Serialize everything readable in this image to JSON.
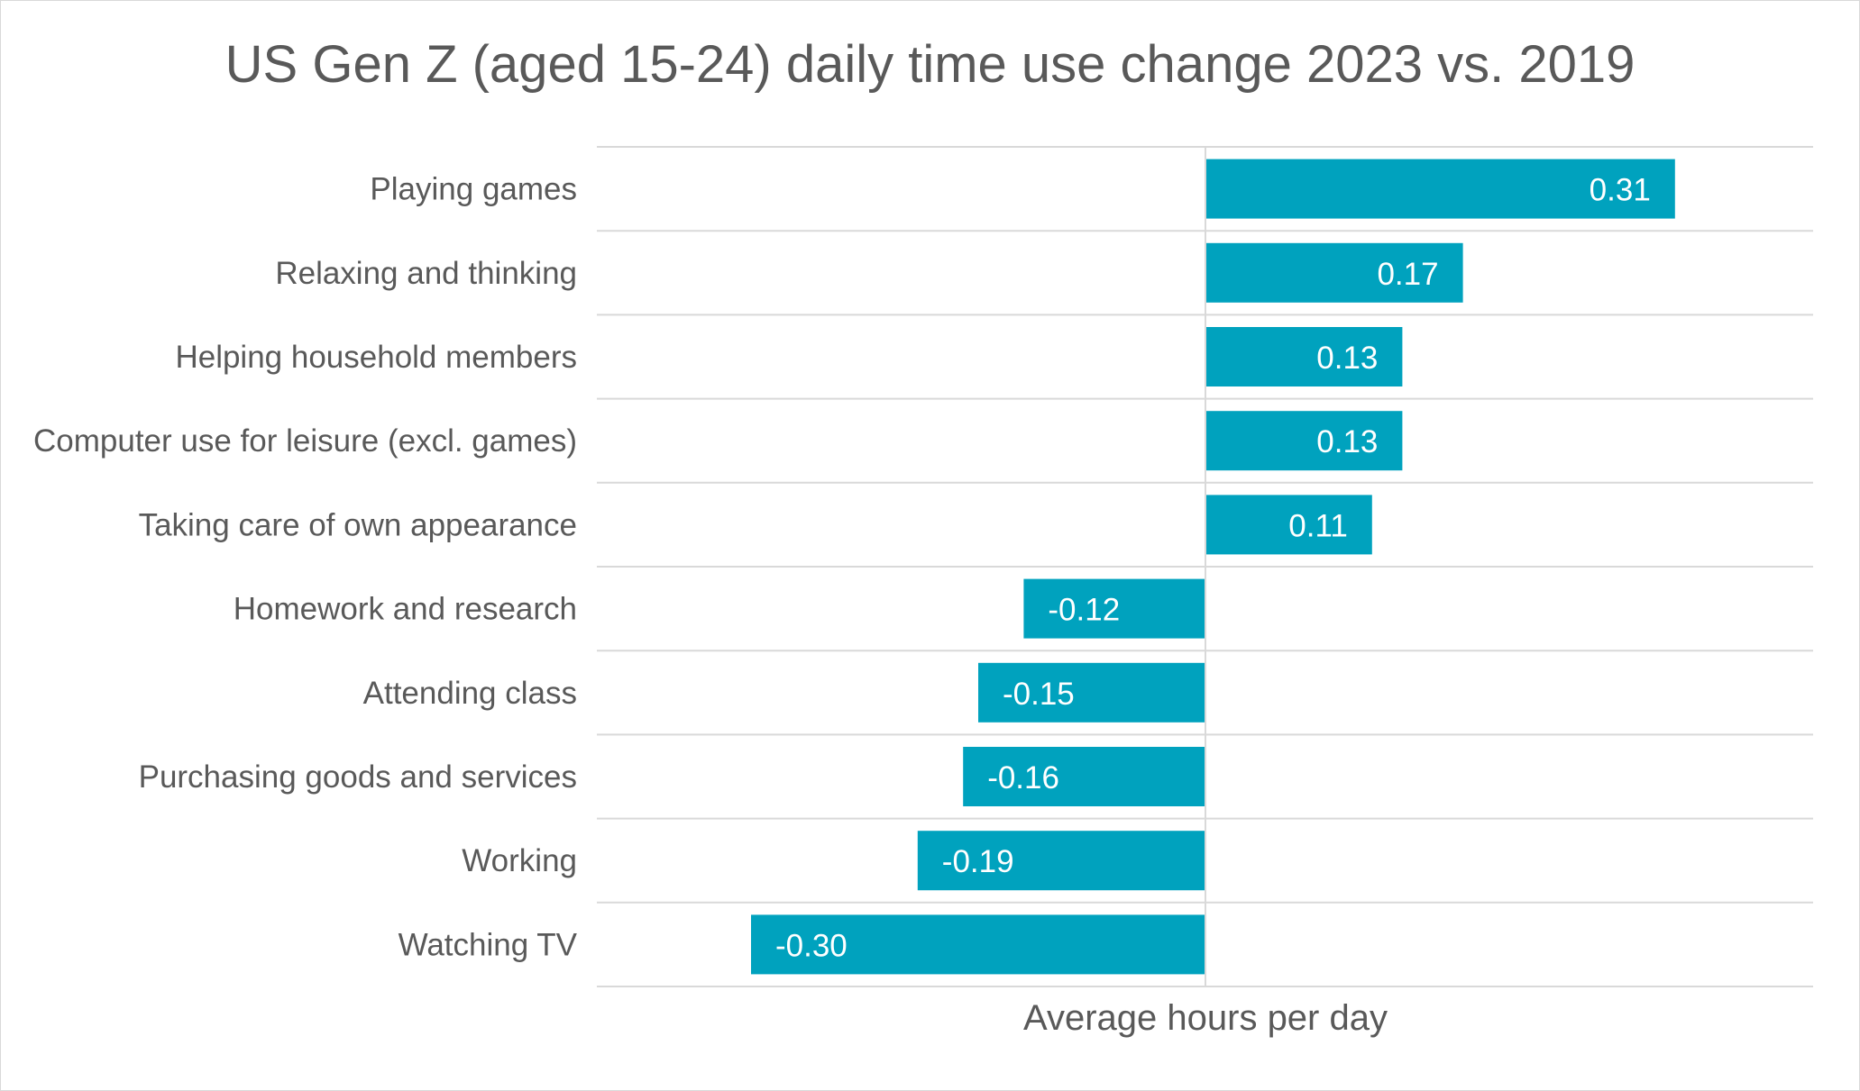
{
  "chart_data": {
    "type": "bar",
    "orientation": "horizontal",
    "title": "US Gen Z (aged 15-24) daily time use change 2023 vs. 2019",
    "xlabel": "Average hours per day",
    "ylabel": "",
    "categories": [
      "Playing games",
      "Relaxing and thinking",
      "Helping household members",
      "Computer use for leisure (excl. games)",
      "Taking care of own appearance",
      "Homework and research",
      "Attending class",
      "Purchasing goods and services",
      "Working",
      "Watching TV"
    ],
    "values": [
      0.31,
      0.17,
      0.13,
      0.13,
      0.11,
      -0.12,
      -0.15,
      -0.16,
      -0.19,
      -0.3
    ],
    "data_labels": [
      "0.31",
      "0.17",
      "0.13",
      "0.13",
      "0.11",
      "-0.12",
      "-0.15",
      "-0.16",
      "-0.19",
      "-0.30"
    ],
    "xlim": [
      -0.4,
      0.4
    ],
    "grid": true,
    "legend": "none",
    "colors": {
      "bar": "#00a2be",
      "grid": "#d9d9d9",
      "text": "#595959",
      "value_text": "#ffffff"
    }
  }
}
